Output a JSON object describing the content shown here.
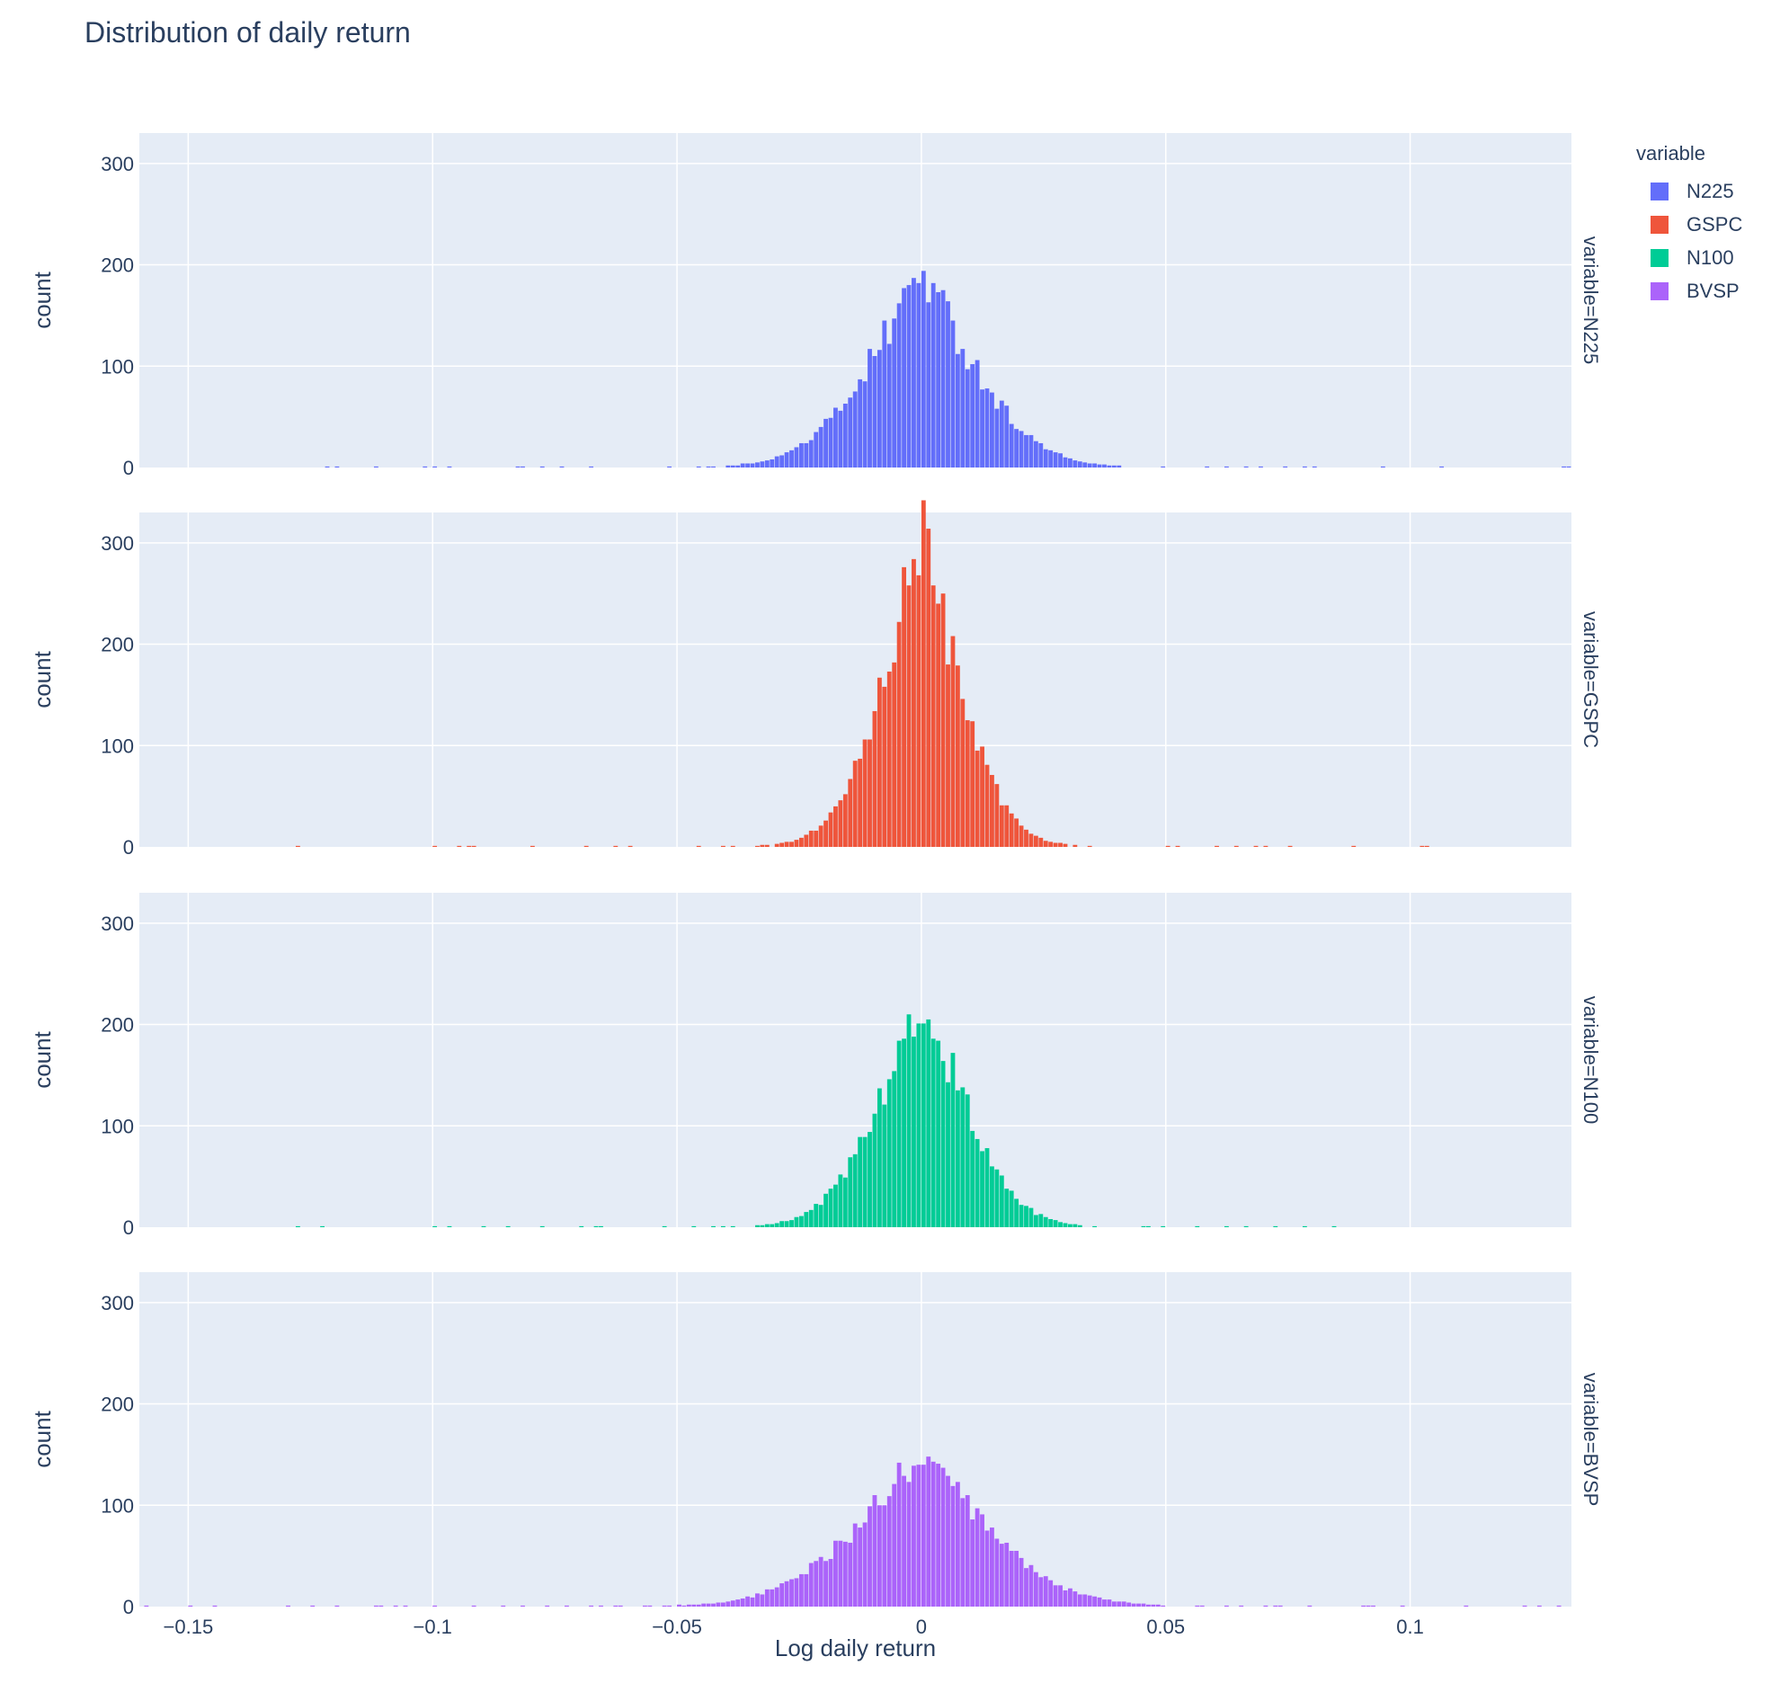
{
  "chart_data": {
    "type": "bar",
    "title": "Distribution of daily return",
    "xlabel": "Log daily return",
    "ylabel": "count",
    "xlim": [
      -0.16,
      0.133
    ],
    "ylim": [
      0,
      330
    ],
    "grid": true,
    "legend_title": "variable",
    "legend_position": "top-right",
    "x_ticks": [
      -0.15,
      -0.1,
      -0.05,
      0,
      0.05,
      0.1
    ],
    "x_tick_labels": [
      "−0.15",
      "−0.1",
      "−0.05",
      "0",
      "0.05",
      "0.1"
    ],
    "y_ticks": [
      0,
      100,
      200,
      300
    ],
    "y_tick_labels": [
      "0",
      "100",
      "200",
      "300"
    ],
    "bin_width": 0.001,
    "series": [
      {
        "name": "N225",
        "facet_label": "variable=N225",
        "color": "#636efa",
        "sigma": 0.0125,
        "peak": 197,
        "x_range": [
          -0.122,
          0.132
        ],
        "extremes": [
          -0.122,
          -0.112,
          -0.102,
          -0.1,
          -0.083,
          -0.078,
          -0.074,
          0.058,
          0.062,
          0.066,
          0.078,
          0.094,
          0.132
        ]
      },
      {
        "name": "GSPC",
        "facet_label": "variable=GSPC",
        "color": "#ef553b",
        "sigma": 0.0092,
        "peak": 313,
        "x_range": [
          -0.128,
          0.104
        ],
        "extremes": [
          -0.128,
          -0.1,
          -0.095,
          -0.093,
          -0.08,
          -0.069,
          -0.063,
          -0.06,
          0.06,
          0.064,
          0.068,
          0.07,
          0.088,
          0.102
        ]
      },
      {
        "name": "N100",
        "facet_label": "variable=N100",
        "color": "#00cc96",
        "sigma": 0.0102,
        "peak": 238,
        "x_range": [
          -0.128,
          0.086
        ],
        "extremes": [
          -0.128,
          -0.09,
          -0.085,
          -0.078,
          -0.07,
          -0.066,
          0.056,
          0.062,
          0.066,
          0.072,
          0.078,
          0.084
        ]
      },
      {
        "name": "BVSP",
        "facet_label": "variable=BVSP",
        "color": "#ab63fa",
        "sigma": 0.0155,
        "peak": 150,
        "x_range": [
          -0.159,
          0.13
        ],
        "extremes": [
          -0.159,
          -0.15,
          -0.13,
          -0.12,
          -0.111,
          -0.106,
          -0.1,
          -0.092,
          -0.082,
          -0.077,
          0.062,
          0.072,
          0.079,
          0.092,
          0.126,
          0.13
        ]
      }
    ]
  }
}
